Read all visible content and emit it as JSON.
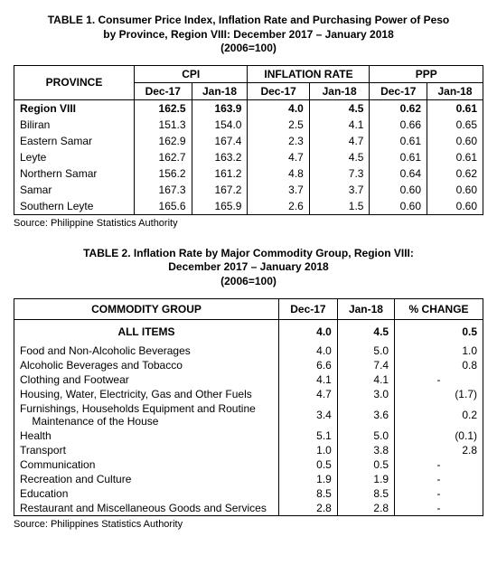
{
  "table1": {
    "title_line1": "TABLE 1. Consumer Price Index, Inflation Rate and Purchasing Power of Peso",
    "title_line2": "by Province, Region VIII: December 2017 – January 2018",
    "title_line3": "(2006=100)",
    "headers": {
      "province": "PROVINCE",
      "cpi": "CPI",
      "inflation": "INFLATION RATE",
      "ppp": "PPP",
      "dec17": "Dec-17",
      "jan18": "Jan-18"
    },
    "rows": [
      {
        "province": "Region VIII",
        "cpi_dec": "162.5",
        "cpi_jan": "163.9",
        "inf_dec": "4.0",
        "inf_jan": "4.5",
        "ppp_dec": "0.62",
        "ppp_jan": "0.61",
        "region": true
      },
      {
        "province": "Biliran",
        "cpi_dec": "151.3",
        "cpi_jan": "154.0",
        "inf_dec": "2.5",
        "inf_jan": "4.1",
        "ppp_dec": "0.66",
        "ppp_jan": "0.65"
      },
      {
        "province": "Eastern Samar",
        "cpi_dec": "162.9",
        "cpi_jan": "167.4",
        "inf_dec": "2.3",
        "inf_jan": "4.7",
        "ppp_dec": "0.61",
        "ppp_jan": "0.60"
      },
      {
        "province": "Leyte",
        "cpi_dec": "162.7",
        "cpi_jan": "163.2",
        "inf_dec": "4.7",
        "inf_jan": "4.5",
        "ppp_dec": "0.61",
        "ppp_jan": "0.61"
      },
      {
        "province": "Northern Samar",
        "cpi_dec": "156.2",
        "cpi_jan": "161.2",
        "inf_dec": "4.8",
        "inf_jan": "7.3",
        "ppp_dec": "0.64",
        "ppp_jan": "0.62"
      },
      {
        "province": "Samar",
        "cpi_dec": "167.3",
        "cpi_jan": "167.2",
        "inf_dec": "3.7",
        "inf_jan": "3.7",
        "ppp_dec": "0.60",
        "ppp_jan": "0.60"
      },
      {
        "province": "Southern Leyte",
        "cpi_dec": "165.6",
        "cpi_jan": "165.9",
        "inf_dec": "2.6",
        "inf_jan": "1.5",
        "ppp_dec": "0.60",
        "ppp_jan": "0.60"
      }
    ],
    "source": "Source: Philippine Statistics Authority"
  },
  "table2": {
    "title_line1": "TABLE 2. Inflation Rate by Major Commodity Group, Region VIII:",
    "title_line2": "December 2017 – January 2018",
    "title_line3": "(2006=100)",
    "headers": {
      "group": "COMMODITY GROUP",
      "dec17": "Dec-17",
      "jan18": "Jan-18",
      "change": "% CHANGE"
    },
    "all_label": "ALL ITEMS",
    "all": {
      "dec": "4.0",
      "jan": "4.5",
      "change": "0.5"
    },
    "rows": [
      {
        "group": "Food and Non-Alcoholic Beverages",
        "dec": "4.0",
        "jan": "5.0",
        "change": "1.0"
      },
      {
        "group": "Alcoholic Beverages and Tobacco",
        "dec": "6.6",
        "jan": "7.4",
        "change": "0.8"
      },
      {
        "group": "Clothing and Footwear",
        "dec": "4.1",
        "jan": "4.1",
        "change": "-"
      },
      {
        "group": "Housing, Water, Electricity, Gas and Other Fuels",
        "dec": "4.7",
        "jan": "3.0",
        "change": "(1.7)"
      },
      {
        "group": "Furnishings, Households Equipment and Routine Maintenance of the House",
        "dec": "3.4",
        "jan": "3.6",
        "change": "0.2",
        "tall": true
      },
      {
        "group": "Health",
        "dec": "5.1",
        "jan": "5.0",
        "change": "(0.1)"
      },
      {
        "group": "Transport",
        "dec": "1.0",
        "jan": "3.8",
        "change": "2.8"
      },
      {
        "group": "Communication",
        "dec": "0.5",
        "jan": "0.5",
        "change": "-"
      },
      {
        "group": "Recreation and Culture",
        "dec": "1.9",
        "jan": "1.9",
        "change": "-"
      },
      {
        "group": "Education",
        "dec": "8.5",
        "jan": "8.5",
        "change": "-"
      },
      {
        "group": "Restaurant and Miscellaneous Goods and Services",
        "dec": "2.8",
        "jan": "2.8",
        "change": "-"
      }
    ],
    "source": "Source: Philippines Statistics Authority"
  }
}
